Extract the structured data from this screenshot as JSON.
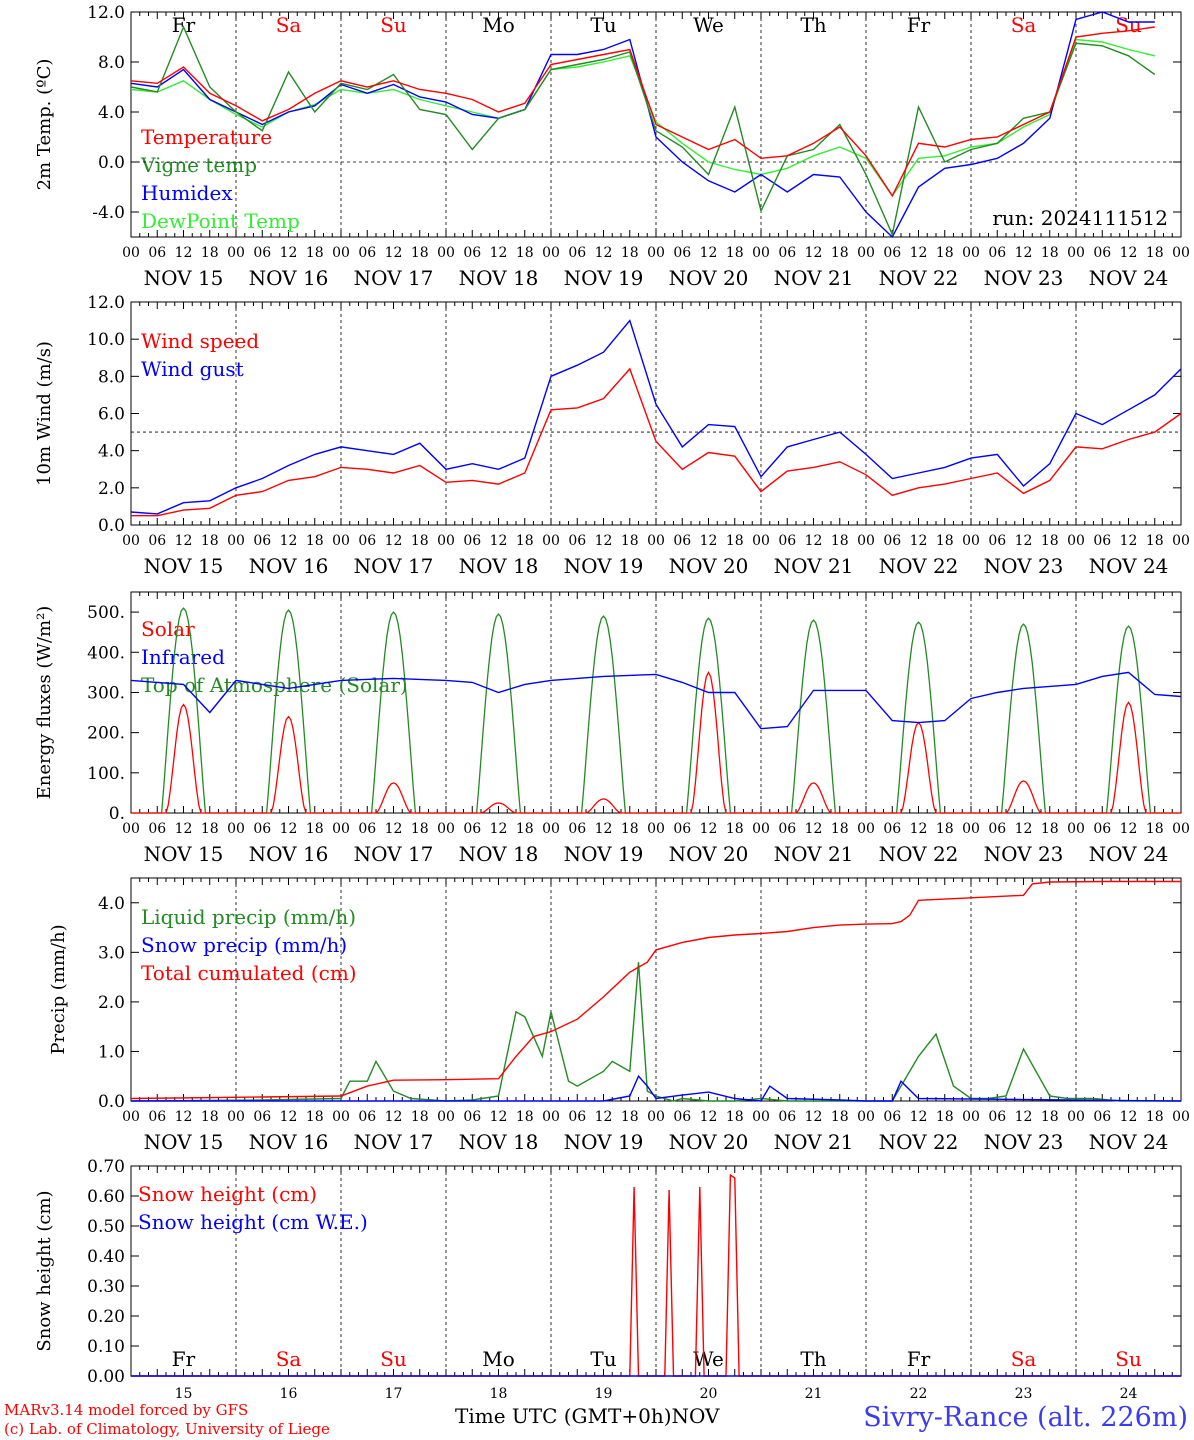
{
  "colors": {
    "red": "#ff0000",
    "green": "#228b22",
    "blue": "#0000ff",
    "lightgreen": "#33ee33",
    "daySat": "#ff0000",
    "dayWeekday": "#000000"
  },
  "days_top": [
    "Fr",
    "Sa",
    "Su",
    "Mo",
    "Tu",
    "We",
    "Th",
    "Fr",
    "Sa",
    "Su"
  ],
  "day_colors": [
    "#000000",
    "#ff0000",
    "#ff0000",
    "#000000",
    "#000000",
    "#000000",
    "#000000",
    "#000000",
    "#ff0000",
    "#ff0000"
  ],
  "date_labels": [
    "NOV 15",
    "NOV 16",
    "NOV 17",
    "NOV 18",
    "NOV 19",
    "NOV 20",
    "NOV 21",
    "NOV 22",
    "NOV 23",
    "NOV 24"
  ],
  "hour_labels": [
    "00",
    "06",
    "12",
    "18"
  ],
  "bottom_day_numbers": [
    "15",
    "16",
    "17",
    "18",
    "19",
    "20",
    "21",
    "22",
    "23",
    "24"
  ],
  "panels": {
    "temp": {
      "ylabel": "2m Temp. (ºC)",
      "yticks": [
        "12.0",
        "8.0",
        "4.0",
        "0.0",
        "-4.0"
      ],
      "ylim": [
        -6,
        12
      ],
      "legend": [
        "Temperature",
        "Vigne temp",
        "Humidex",
        "DewPoint Temp"
      ],
      "run_label": "run: 2024111512"
    },
    "wind": {
      "ylabel": "10m Wind (m/s)",
      "yticks": [
        "12.0",
        "10.0",
        "8.0",
        "6.0",
        "4.0",
        "2.0",
        "0.0"
      ],
      "ylim": [
        0,
        12
      ],
      "legend": [
        "Wind speed",
        "Wind gust"
      ]
    },
    "energy": {
      "ylabel": "Energy fluxes (W/m²)",
      "yticks": [
        "500.",
        "400.",
        "300.",
        "200.",
        "100.",
        "0."
      ],
      "ylim": [
        0,
        550
      ],
      "legend": [
        "Solar",
        "Infrared",
        "Top of Atmosphere (Solar)"
      ]
    },
    "precip": {
      "ylabel": "Precip (mm/h)",
      "yticks": [
        "4.0",
        "3.0",
        "2.0",
        "1.0",
        "0.0"
      ],
      "ylim": [
        0,
        4.5
      ],
      "legend": [
        "Liquid precip (mm/h)",
        "Snow precip (mm/h)",
        "Total cumulated (cm)"
      ]
    },
    "snow": {
      "ylabel": "Snow height (cm)",
      "yticks": [
        "0.70",
        "0.60",
        "0.50",
        "0.40",
        "0.30",
        "0.20",
        "0.10",
        "0.00"
      ],
      "ylim": [
        0,
        0.7
      ],
      "legend": [
        "Snow height (cm)",
        "Snow height (cm W.E.)"
      ]
    }
  },
  "footer": {
    "credit1": "MARv3.14 model forced by GFS",
    "credit2": "(c) Lab. of Climatology, University of Liege",
    "xlabel": "Time UTC (GMT+0h)",
    "month": "NOV",
    "station": "Sivry-Rance (alt. 226m)"
  },
  "chart_data": [
    {
      "type": "line",
      "title": "",
      "ylabel": "2m Temp. (ºC)",
      "x_unit": "hours since Nov 15 00 UTC",
      "ylim": [
        -6,
        12
      ],
      "grid": "dashed day separators, dashed zero line",
      "series": [
        {
          "name": "Temperature",
          "color": "#ff0000",
          "x": [
            0,
            6,
            12,
            18,
            24,
            30,
            36,
            42,
            48,
            54,
            60,
            66,
            72,
            78,
            84,
            90,
            96,
            102,
            108,
            114,
            120,
            126,
            132,
            138,
            144,
            150,
            156,
            162,
            168,
            174,
            180,
            186,
            192,
            198,
            204,
            210,
            216,
            222,
            228,
            234
          ],
          "values": [
            6.5,
            6.3,
            7.6,
            5.5,
            4.5,
            3.3,
            4.2,
            5.5,
            6.5,
            6.0,
            6.5,
            5.8,
            5.5,
            5.0,
            4.0,
            4.7,
            7.8,
            8.2,
            8.6,
            9.0,
            3.0,
            2.0,
            1.0,
            1.8,
            0.3,
            0.5,
            1.5,
            2.8,
            0.5,
            -2.7,
            1.5,
            1.2,
            1.8,
            2.0,
            3.0,
            4.0,
            10.0,
            10.3,
            10.5,
            10.8
          ]
        },
        {
          "name": "Vigne temp",
          "color": "#228b22",
          "x": [
            0,
            6,
            12,
            18,
            24,
            30,
            36,
            42,
            48,
            54,
            60,
            66,
            72,
            78,
            84,
            90,
            96,
            102,
            108,
            114,
            120,
            126,
            132,
            138,
            144,
            150,
            156,
            162,
            168,
            174,
            180,
            186,
            192,
            198,
            204,
            210,
            216,
            222,
            228,
            234
          ],
          "values": [
            6.0,
            5.6,
            10.8,
            6.0,
            4.0,
            2.5,
            7.2,
            4.0,
            6.3,
            5.8,
            7.0,
            4.2,
            3.8,
            1.0,
            3.5,
            4.2,
            7.4,
            7.8,
            8.2,
            8.8,
            2.5,
            1.2,
            -1.0,
            4.4,
            -3.9,
            0.5,
            1.0,
            3.0,
            -1.0,
            -5.8,
            4.4,
            0.0,
            1.0,
            1.5,
            3.5,
            4.0,
            9.5,
            9.3,
            8.5,
            7.0
          ]
        },
        {
          "name": "Humidex",
          "color": "#0000ff",
          "x": [
            0,
            6,
            12,
            18,
            24,
            30,
            36,
            42,
            48,
            54,
            60,
            66,
            72,
            78,
            84,
            90,
            96,
            102,
            108,
            114,
            120,
            126,
            132,
            138,
            144,
            150,
            156,
            162,
            168,
            174,
            180,
            186,
            192,
            198,
            204,
            210,
            216,
            222,
            228,
            234
          ],
          "values": [
            6.3,
            6.0,
            7.4,
            5.0,
            4.0,
            3.0,
            4.0,
            4.5,
            6.2,
            5.5,
            6.2,
            5.2,
            4.8,
            3.8,
            3.5,
            4.2,
            8.6,
            8.6,
            9.0,
            9.8,
            2.0,
            0.0,
            -1.5,
            -2.4,
            -1.0,
            -2.4,
            -1.0,
            -1.2,
            -4.0,
            -6.0,
            -2.0,
            -0.5,
            -0.2,
            0.3,
            1.5,
            3.5,
            11.4,
            12.0,
            11.2,
            11.2
          ]
        },
        {
          "name": "DewPoint Temp",
          "color": "#33ee33",
          "x": [
            0,
            6,
            12,
            18,
            24,
            30,
            36,
            42,
            48,
            54,
            60,
            66,
            72,
            78,
            84,
            90,
            96,
            102,
            108,
            114,
            120,
            126,
            132,
            138,
            144,
            150,
            156,
            162,
            168,
            174,
            180,
            186,
            192,
            198,
            204,
            210,
            216,
            222,
            228,
            234
          ],
          "values": [
            5.8,
            5.6,
            6.5,
            5.0,
            3.8,
            2.8,
            4.0,
            4.6,
            5.8,
            5.5,
            5.8,
            5.0,
            4.5,
            4.0,
            3.5,
            4.2,
            7.4,
            7.6,
            8.0,
            8.5,
            3.2,
            1.5,
            0.0,
            -0.6,
            -1.0,
            -0.5,
            0.5,
            1.2,
            0.3,
            -2.7,
            0.3,
            0.5,
            1.2,
            1.5,
            2.8,
            3.8,
            9.8,
            9.6,
            9.0,
            8.5
          ]
        }
      ]
    },
    {
      "type": "line",
      "title": "",
      "ylabel": "10m Wind (m/s)",
      "x_unit": "hours since Nov 15 00 UTC",
      "ylim": [
        0,
        12
      ],
      "grid": "dashed day separators, dashed line at 5",
      "series": [
        {
          "name": "Wind speed",
          "color": "#ff0000",
          "x": [
            0,
            6,
            12,
            18,
            24,
            30,
            36,
            42,
            48,
            54,
            60,
            66,
            72,
            78,
            84,
            90,
            96,
            102,
            108,
            114,
            120,
            126,
            132,
            138,
            144,
            150,
            156,
            162,
            168,
            174,
            180,
            186,
            192,
            198,
            204,
            210,
            216,
            222,
            228,
            234,
            240
          ],
          "values": [
            0.5,
            0.5,
            0.8,
            0.9,
            1.6,
            1.8,
            2.4,
            2.6,
            3.1,
            3.0,
            2.8,
            3.2,
            2.3,
            2.4,
            2.2,
            2.8,
            6.2,
            6.3,
            6.8,
            8.4,
            4.5,
            3.0,
            3.9,
            3.7,
            1.8,
            2.9,
            3.1,
            3.4,
            2.7,
            1.6,
            2.0,
            2.2,
            2.5,
            2.8,
            1.7,
            2.4,
            4.2,
            4.1,
            4.6,
            5.0,
            6.0
          ]
        },
        {
          "name": "Wind gust",
          "color": "#0000ff",
          "x": [
            0,
            6,
            12,
            18,
            24,
            30,
            36,
            42,
            48,
            54,
            60,
            66,
            72,
            78,
            84,
            90,
            96,
            102,
            108,
            114,
            120,
            126,
            132,
            138,
            144,
            150,
            156,
            162,
            168,
            174,
            180,
            186,
            192,
            198,
            204,
            210,
            216,
            222,
            228,
            234,
            240
          ],
          "values": [
            0.7,
            0.6,
            1.2,
            1.3,
            2.0,
            2.5,
            3.2,
            3.8,
            4.2,
            4.0,
            3.8,
            4.4,
            3.0,
            3.3,
            3.0,
            3.6,
            8.0,
            8.6,
            9.3,
            11.0,
            6.5,
            4.2,
            5.4,
            5.3,
            2.6,
            4.2,
            4.6,
            5.0,
            3.8,
            2.5,
            2.8,
            3.1,
            3.6,
            3.8,
            2.1,
            3.3,
            6.0,
            5.4,
            6.2,
            7.0,
            8.4
          ]
        }
      ]
    },
    {
      "type": "line",
      "title": "",
      "ylabel": "Energy fluxes (W/m²)",
      "x_unit": "hours since Nov 15 00 UTC",
      "ylim": [
        0,
        550
      ],
      "grid": "dashed day separators",
      "series": [
        {
          "name": "Solar",
          "color": "#ff0000",
          "day_peaks": [
            270,
            240,
            75,
            25,
            35,
            350,
            75,
            225,
            80,
            275
          ]
        },
        {
          "name": "Infrared",
          "color": "#0000ff",
          "x": [
            0,
            12,
            18,
            24,
            30,
            36,
            48,
            60,
            72,
            78,
            84,
            90,
            96,
            108,
            120,
            126,
            132,
            138,
            144,
            150,
            156,
            162,
            168,
            174,
            180,
            186,
            192,
            198,
            204,
            210,
            216,
            222,
            228,
            234,
            240
          ],
          "values": [
            330,
            320,
            250,
            330,
            320,
            310,
            330,
            335,
            330,
            325,
            300,
            320,
            330,
            340,
            345,
            325,
            300,
            300,
            210,
            215,
            305,
            305,
            305,
            230,
            225,
            230,
            285,
            300,
            310,
            315,
            320,
            340,
            350,
            295,
            290
          ]
        },
        {
          "name": "Top of Atmosphere (Solar)",
          "color": "#228b22",
          "day_peaks": [
            510,
            505,
            500,
            495,
            490,
            485,
            480,
            475,
            470,
            465
          ]
        }
      ]
    },
    {
      "type": "line",
      "title": "",
      "ylabel": "Precip (mm/h)",
      "x_unit": "hours since Nov 15 00 UTC",
      "ylim": [
        0,
        4.5
      ],
      "grid": "dashed day separators",
      "series": [
        {
          "name": "Liquid precip (mm/h)",
          "color": "#228b22",
          "x": [
            0,
            30,
            48,
            50,
            54,
            56,
            60,
            64,
            72,
            78,
            84,
            88,
            90,
            94,
            96,
            100,
            102,
            104,
            108,
            110,
            114,
            116,
            118,
            120,
            124,
            126,
            132,
            138,
            144,
            150,
            156,
            162,
            168,
            174,
            176,
            180,
            184,
            188,
            192,
            196,
            200,
            204,
            210,
            214,
            220,
            226,
            240
          ],
          "values": [
            0,
            0.02,
            0.05,
            0.4,
            0.4,
            0.8,
            0.2,
            0.05,
            0.0,
            0.02,
            0.1,
            1.8,
            1.7,
            0.9,
            1.8,
            0.4,
            0.3,
            0.4,
            0.6,
            0.8,
            0.6,
            2.8,
            0.2,
            0.1,
            0.0,
            0.05,
            0.0,
            0.0,
            0.05,
            0.0,
            0.0,
            0.0,
            0.0,
            0.0,
            0.3,
            0.9,
            1.35,
            0.3,
            0.05,
            0.05,
            0.1,
            1.05,
            0.1,
            0.05,
            0.05,
            0.0,
            0.0
          ]
        },
        {
          "name": "Snow precip (mm/h)",
          "color": "#0000ff",
          "x": [
            0,
            108,
            114,
            116,
            118,
            120,
            126,
            132,
            138,
            144,
            146,
            150,
            162,
            168,
            174,
            176,
            180,
            240
          ],
          "values": [
            0,
            0,
            0.1,
            0.5,
            0.3,
            0.05,
            0.12,
            0.18,
            0.05,
            0.0,
            0.3,
            0.05,
            0.02,
            0.0,
            0.0,
            0.4,
            0.05,
            0.0
          ]
        },
        {
          "name": "Total cumulated (cm)",
          "color": "#ff0000",
          "x": [
            0,
            30,
            48,
            54,
            60,
            72,
            84,
            88,
            92,
            96,
            102,
            108,
            114,
            118,
            120,
            126,
            132,
            138,
            144,
            150,
            156,
            162,
            168,
            174,
            176,
            178,
            180,
            192,
            204,
            206,
            210,
            222,
            240
          ],
          "values": [
            0.05,
            0.08,
            0.1,
            0.3,
            0.42,
            0.43,
            0.45,
            0.9,
            1.3,
            1.4,
            1.65,
            2.1,
            2.6,
            2.8,
            3.05,
            3.2,
            3.3,
            3.35,
            3.38,
            3.42,
            3.5,
            3.55,
            3.57,
            3.58,
            3.62,
            3.75,
            4.05,
            4.1,
            4.15,
            4.38,
            4.42,
            4.43,
            4.43
          ]
        }
      ]
    },
    {
      "type": "line",
      "title": "",
      "ylabel": "Snow height (cm)",
      "x_unit": "hours since Nov 15 00 UTC",
      "ylim": [
        0,
        0.7
      ],
      "grid": "dashed day separators",
      "series": [
        {
          "name": "Snow height (cm)",
          "color": "#ff0000",
          "x": [
            0,
            114,
            115,
            116,
            117,
            118,
            119,
            120,
            122,
            123,
            124,
            125,
            126,
            129,
            130,
            131,
            132,
            133,
            134,
            136,
            137,
            138,
            139,
            140,
            141,
            142,
            240
          ],
          "values": [
            0,
            0,
            0.63,
            0,
            0,
            0,
            0,
            0,
            0,
            0.62,
            0,
            0,
            0,
            0,
            0.63,
            0,
            0,
            0,
            0,
            0,
            0.67,
            0.66,
            0,
            0,
            0,
            0,
            0
          ]
        },
        {
          "name": "Snow height (cm W.E.)",
          "color": "#0000ff",
          "x": [
            0,
            240
          ],
          "values": [
            0,
            0
          ]
        }
      ]
    }
  ]
}
